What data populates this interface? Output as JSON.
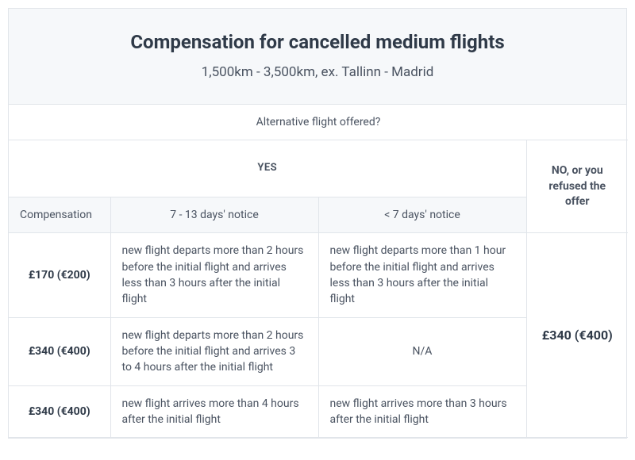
{
  "header": {
    "title": "Compensation for cancelled medium flights",
    "subtitle": "1,500km - 3,500km, ex. Tallinn - Madrid"
  },
  "table": {
    "question": "Alternative flight offered?",
    "yes_label": "YES",
    "no_label": "NO, or you refused the offer",
    "compensation_col": "Compensation",
    "notice_a": "7 - 13 days' notice",
    "notice_b": "< 7 days' notice",
    "no_amount": "£340 (€400)",
    "rows": [
      {
        "amount": "£170 (€200)",
        "a": "new flight departs more than 2 hours before the initial flight and arrives less than 3 hours after the initial flight",
        "b": "new flight departs more than 1 hour before the initial flight and arrives less than 3 hours after the initial flight"
      },
      {
        "amount": "£340 (€400)",
        "a": "new flight departs more than 2 hours before the initial flight and arrives 3 to 4 hours after the initial flight",
        "b": "N/A"
      },
      {
        "amount": "£340 (€400)",
        "a": "new flight arrives more than 4 hours after the initial flight",
        "b": "new flight arrives more than 3 hours after the initial flight"
      }
    ]
  },
  "style": {
    "header_bg": "#f6f8fa",
    "border_color": "#e1e5ea",
    "text_color": "#4a5361",
    "strong_color": "#2f3a48",
    "title_fontsize": 24,
    "subtitle_fontsize": 17,
    "cell_fontsize": 14
  }
}
